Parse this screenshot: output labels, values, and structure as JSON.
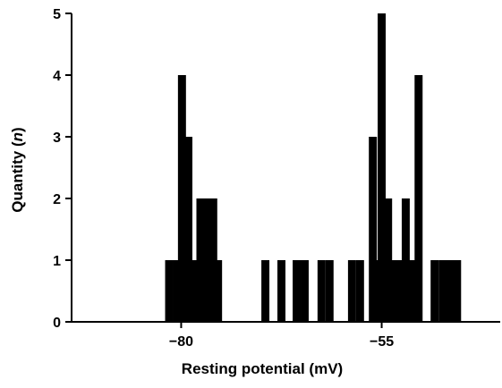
{
  "chart_data": {
    "type": "bar",
    "title": "",
    "xlabel": "Resting potential (mV)",
    "ylabel_parts": [
      "Quantity (",
      "n",
      ")"
    ],
    "ylim": [
      0,
      5
    ],
    "xlim": [
      -95,
      -40
    ],
    "yticks": [
      "0",
      "1",
      "2",
      "3",
      "4",
      "5"
    ],
    "xticks": [
      {
        "value": -80,
        "label": "−80"
      },
      {
        "value": -55,
        "label": "−55"
      }
    ],
    "grid": false,
    "bar_color": "#000000",
    "bin_width": 1,
    "bars": [
      {
        "x": -81.5,
        "count": 1
      },
      {
        "x": -80.5,
        "count": 1
      },
      {
        "x": -79.9,
        "count": 4
      },
      {
        "x": -79.1,
        "count": 3
      },
      {
        "x": -78.3,
        "count": 1
      },
      {
        "x": -77.6,
        "count": 2
      },
      {
        "x": -76.7,
        "count": 2
      },
      {
        "x": -76.0,
        "count": 2
      },
      {
        "x": -75.4,
        "count": 1
      },
      {
        "x": -69.5,
        "count": 1
      },
      {
        "x": -67.5,
        "count": 1
      },
      {
        "x": -65.6,
        "count": 1
      },
      {
        "x": -64.6,
        "count": 1
      },
      {
        "x": -62.5,
        "count": 1
      },
      {
        "x": -61.5,
        "count": 1
      },
      {
        "x": -58.7,
        "count": 1
      },
      {
        "x": -57.7,
        "count": 1
      },
      {
        "x": -56.1,
        "count": 3
      },
      {
        "x": -55.4,
        "count": 1
      },
      {
        "x": -55.0,
        "count": 5
      },
      {
        "x": -54.2,
        "count": 2
      },
      {
        "x": -53.5,
        "count": 1
      },
      {
        "x": -52.7,
        "count": 1
      },
      {
        "x": -52.0,
        "count": 2
      },
      {
        "x": -51.3,
        "count": 1
      },
      {
        "x": -50.4,
        "count": 4
      },
      {
        "x": -48.4,
        "count": 1
      },
      {
        "x": -47.4,
        "count": 1
      },
      {
        "x": -46.5,
        "count": 1
      },
      {
        "x": -45.6,
        "count": 1
      }
    ]
  }
}
